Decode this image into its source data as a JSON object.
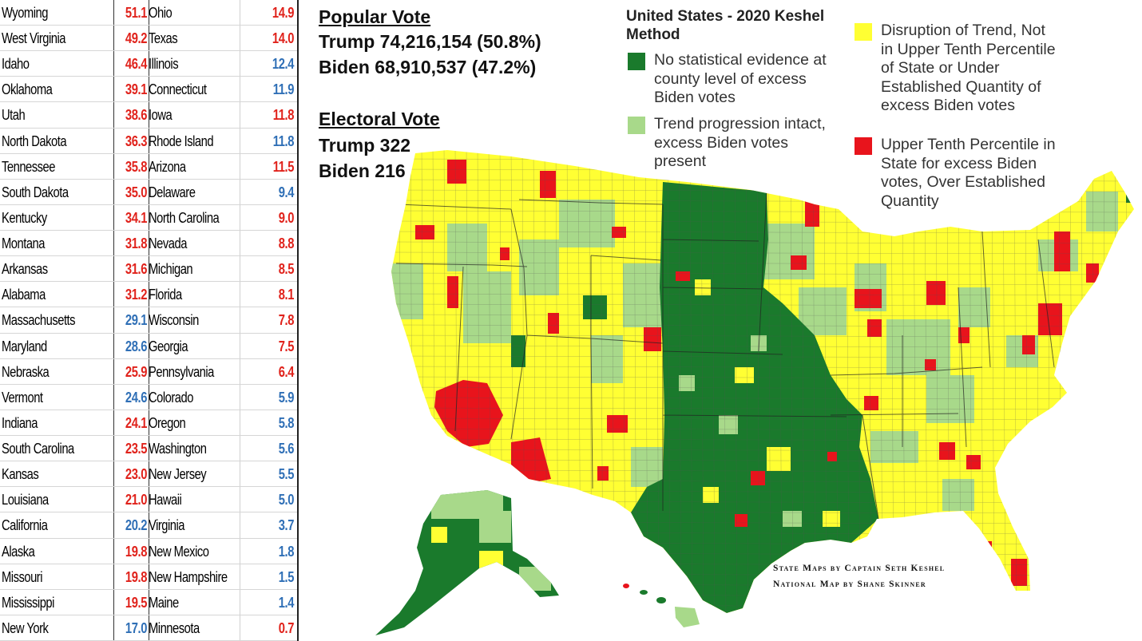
{
  "table": {
    "rows": [
      {
        "name1": "Wyoming",
        "val1": "51.1",
        "color1": "red",
        "name2": "Ohio",
        "val2": "14.9",
        "color2": "red"
      },
      {
        "name1": "West Virginia",
        "val1": "49.2",
        "color1": "red",
        "name2": "Texas",
        "val2": "14.0",
        "color2": "red"
      },
      {
        "name1": "Idaho",
        "val1": "46.4",
        "color1": "red",
        "name2": "Illinois",
        "val2": "12.4",
        "color2": "blue"
      },
      {
        "name1": "Oklahoma",
        "val1": "39.1",
        "color1": "red",
        "name2": "Connecticut",
        "val2": "11.9",
        "color2": "blue"
      },
      {
        "name1": "Utah",
        "val1": "38.6",
        "color1": "red",
        "name2": "Iowa",
        "val2": "11.8",
        "color2": "red"
      },
      {
        "name1": "North Dakota",
        "val1": "36.3",
        "color1": "red",
        "name2": "Rhode Island",
        "val2": "11.8",
        "color2": "blue"
      },
      {
        "name1": "Tennessee",
        "val1": "35.8",
        "color1": "red",
        "name2": "Arizona",
        "val2": "11.5",
        "color2": "red"
      },
      {
        "name1": "South Dakota",
        "val1": "35.0",
        "color1": "red",
        "name2": "Delaware",
        "val2": "9.4",
        "color2": "blue"
      },
      {
        "name1": "Kentucky",
        "val1": "34.1",
        "color1": "red",
        "name2": "North Carolina",
        "val2": "9.0",
        "color2": "red"
      },
      {
        "name1": "Montana",
        "val1": "31.8",
        "color1": "red",
        "name2": "Nevada",
        "val2": "8.8",
        "color2": "red"
      },
      {
        "name1": "Arkansas",
        "val1": "31.6",
        "color1": "red",
        "name2": "Michigan",
        "val2": "8.5",
        "color2": "red"
      },
      {
        "name1": "Alabama",
        "val1": "31.2",
        "color1": "red",
        "name2": "Florida",
        "val2": "8.1",
        "color2": "red"
      },
      {
        "name1": "Massachusetts",
        "val1": "29.1",
        "color1": "blue",
        "name2": "Wisconsin",
        "val2": "7.8",
        "color2": "red"
      },
      {
        "name1": "Maryland",
        "val1": "28.6",
        "color1": "blue",
        "name2": "Georgia",
        "val2": "7.5",
        "color2": "red"
      },
      {
        "name1": "Nebraska",
        "val1": "25.9",
        "color1": "red",
        "name2": "Pennsylvania",
        "val2": "6.4",
        "color2": "red"
      },
      {
        "name1": "Vermont",
        "val1": "24.6",
        "color1": "blue",
        "name2": "Colorado",
        "val2": "5.9",
        "color2": "blue"
      },
      {
        "name1": "Indiana",
        "val1": "24.1",
        "color1": "red",
        "name2": "Oregon",
        "val2": "5.8",
        "color2": "blue"
      },
      {
        "name1": "South Carolina",
        "val1": "23.5",
        "color1": "red",
        "name2": "Washington",
        "val2": "5.6",
        "color2": "blue"
      },
      {
        "name1": "Kansas",
        "val1": "23.0",
        "color1": "red",
        "name2": "New Jersey",
        "val2": "5.5",
        "color2": "blue"
      },
      {
        "name1": "Louisiana",
        "val1": "21.0",
        "color1": "red",
        "name2": "Hawaii",
        "val2": "5.0",
        "color2": "blue"
      },
      {
        "name1": "California",
        "val1": "20.2",
        "color1": "blue",
        "name2": "Virginia",
        "val2": "3.7",
        "color2": "blue"
      },
      {
        "name1": "Alaska",
        "val1": "19.8",
        "color1": "red",
        "name2": "New Mexico",
        "val2": "1.8",
        "color2": "blue"
      },
      {
        "name1": "Missouri",
        "val1": "19.8",
        "color1": "red",
        "name2": "New Hampshire",
        "val2": "1.5",
        "color2": "blue"
      },
      {
        "name1": "Mississippi",
        "val1": "19.5",
        "color1": "red",
        "name2": "Maine",
        "val2": "1.4",
        "color2": "blue"
      },
      {
        "name1": "New York",
        "val1": "17.0",
        "color1": "blue",
        "name2": "Minnesota",
        "val2": "0.7",
        "color2": "red"
      }
    ]
  },
  "popular_vote": {
    "heading": "Popular Vote",
    "trump": "Trump 74,216,154 (50.8%)",
    "biden": "Biden 68,910,537 (47.2%)"
  },
  "electoral_vote": {
    "heading": "Electoral Vote",
    "trump": "Trump 322",
    "biden": "Biden 216"
  },
  "legend": {
    "title": "United States - 2020 Keshel Method",
    "items": [
      {
        "color": "#1a7a2c",
        "lines": [
          "No statistical evidence at",
          "county level of excess",
          "Biden votes"
        ]
      },
      {
        "color": "#a8d98a",
        "lines": [
          "Trend progression intact,",
          "excess Biden votes",
          "present"
        ]
      },
      {
        "color": "#ffff33",
        "lines": [
          "Disruption of Trend, Not",
          "in Upper Tenth Percentile",
          "of State or Under",
          "Established Quantity of",
          "excess Biden votes"
        ]
      },
      {
        "color": "#e8141c",
        "lines": [
          "Upper Tenth Percentile in",
          "State for excess Biden",
          "votes, Over Established",
          "Quantity"
        ]
      }
    ]
  },
  "credits": {
    "line1": "State Maps by Captain Seth Keshel",
    "line2": "National Map by Shane Skinner"
  },
  "colors": {
    "dark_green": "#1a7a2c",
    "light_green": "#a8d98a",
    "yellow": "#ffff33",
    "red": "#e8141c",
    "red_text": "#e0221b",
    "blue_text": "#2f6fb6"
  }
}
